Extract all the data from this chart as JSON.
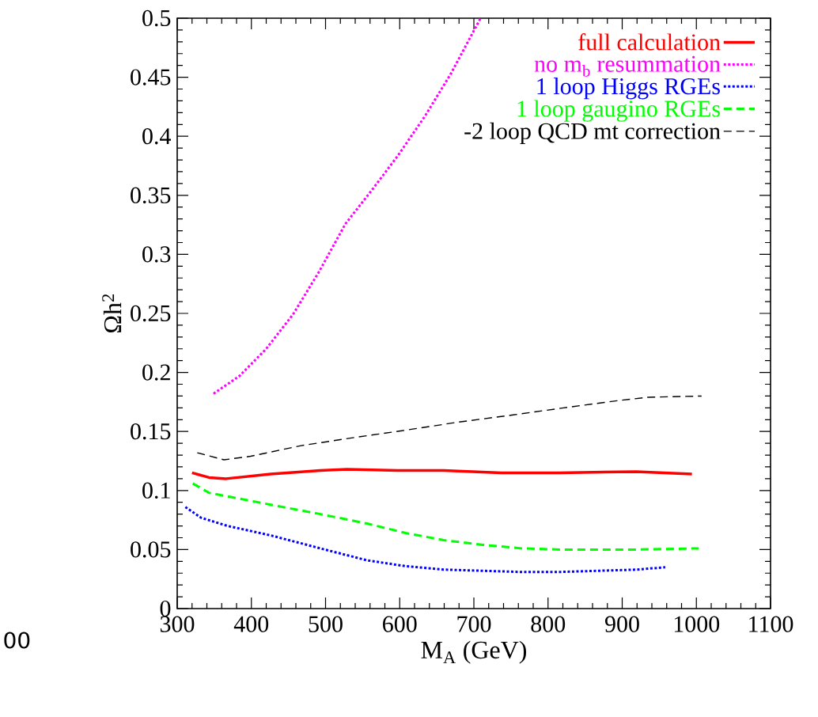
{
  "chart_data": {
    "type": "line",
    "xlabel": "M$_{A}$ (GeV)",
    "ylabel": "Ωh$^{2}$",
    "xlim": [
      300,
      1100
    ],
    "ylim": [
      0,
      0.5
    ],
    "xticks": [
      300,
      400,
      500,
      600,
      700,
      800,
      900,
      1000,
      1100
    ],
    "yticks": [
      0,
      0.05,
      0.1,
      0.15,
      0.2,
      0.25,
      0.3,
      0.35,
      0.4,
      0.45,
      0.5
    ],
    "legend": "top right",
    "grid": false,
    "marker": "none",
    "annotations": [
      "00"
    ],
    "series": [
      {
        "name": "full calculation",
        "color": "#ff0000",
        "line_style": "solid",
        "x": [
          320,
          343,
          366,
          426,
          493,
          529,
          597,
          659,
          737,
          815,
          919,
          994
        ],
        "values": [
          0.115,
          0.111,
          0.11,
          0.114,
          0.117,
          0.118,
          0.117,
          0.117,
          0.115,
          0.115,
          0.116,
          0.114
        ]
      },
      {
        "name": "no m$_{b}$ resummation",
        "color": "#ff00ff",
        "line_style": "dotted",
        "x": [
          349,
          384,
          420,
          456,
          491,
          527,
          562,
          598,
          634,
          669,
          709
        ],
        "values": [
          0.182,
          0.197,
          0.22,
          0.249,
          0.285,
          0.326,
          0.354,
          0.384,
          0.417,
          0.453,
          0.5
        ]
      },
      {
        "name": "1 loop Higgs RGEs",
        "color": "#0000ff",
        "line_style": "dotted",
        "x": [
          311,
          332,
          368,
          426,
          493,
          555,
          607,
          659,
          712,
          763,
          815,
          867,
          919,
          958
        ],
        "values": [
          0.086,
          0.077,
          0.07,
          0.062,
          0.051,
          0.041,
          0.036,
          0.033,
          0.032,
          0.031,
          0.031,
          0.032,
          0.033,
          0.035
        ]
      },
      {
        "name": "1 loop gaugino RGEs",
        "color": "#00ff00",
        "line_style": "dashed",
        "x": [
          321,
          343,
          368,
          426,
          493,
          556,
          608,
          659,
          712,
          764,
          816,
          869,
          920,
          1003
        ],
        "values": [
          0.106,
          0.098,
          0.095,
          0.088,
          0.08,
          0.072,
          0.064,
          0.058,
          0.054,
          0.051,
          0.05,
          0.05,
          0.05,
          0.051
        ]
      },
      {
        "name": "-2 loop QCD mt correction",
        "color": "#000000",
        "line_style": "dashed",
        "x": [
          327,
          363,
          399,
          467,
          540,
          607,
          680,
          753,
          821,
          893,
          935,
          1007
        ],
        "values": [
          0.132,
          0.126,
          0.129,
          0.138,
          0.145,
          0.151,
          0.158,
          0.164,
          0.17,
          0.176,
          0.179,
          0.18
        ]
      }
    ]
  }
}
